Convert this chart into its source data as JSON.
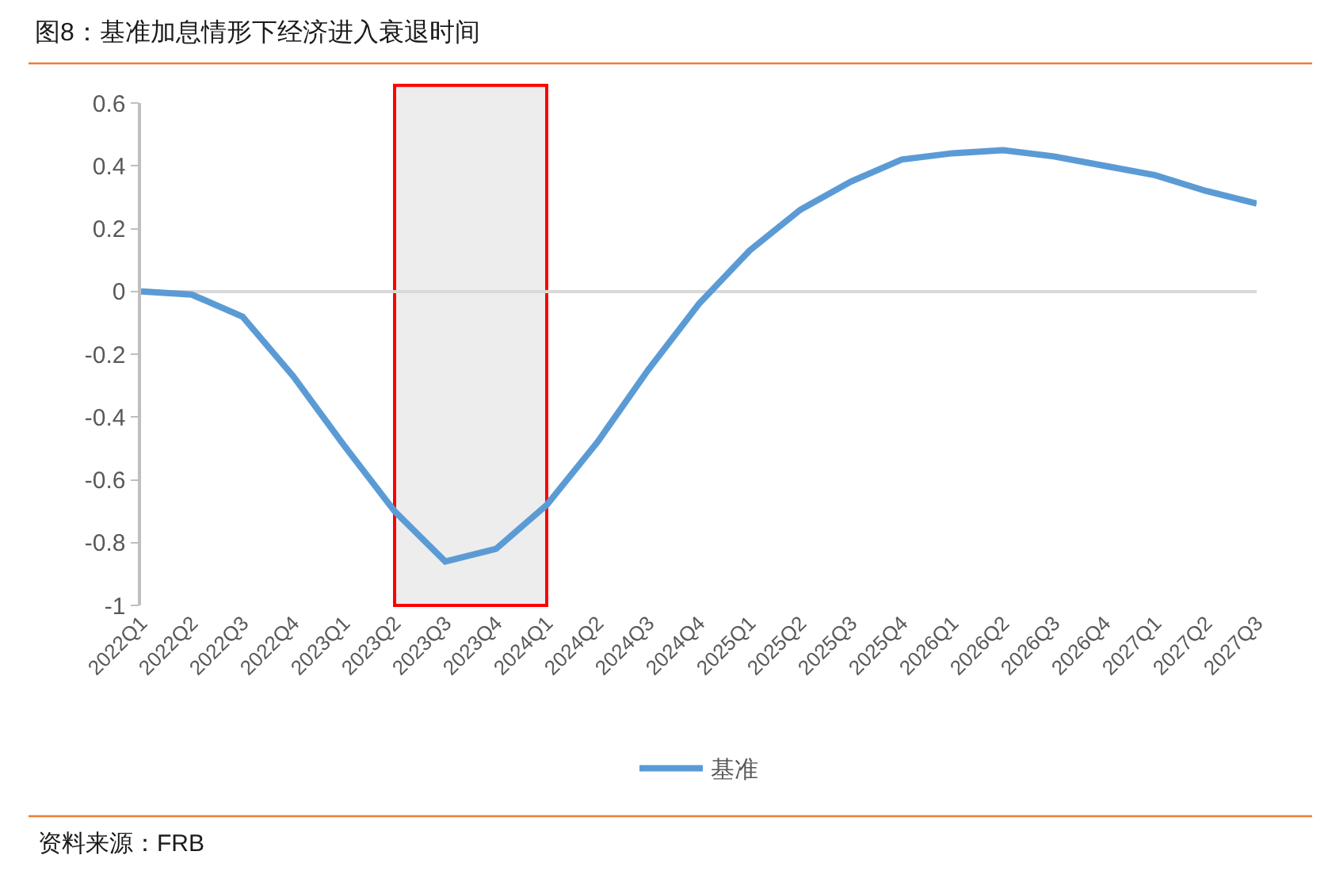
{
  "chart_data": {
    "type": "line",
    "title": "图8：基准加息情形下经济进入衰退时间",
    "categories": [
      "2022Q1",
      "2022Q2",
      "2022Q3",
      "2022Q4",
      "2023Q1",
      "2023Q2",
      "2023Q3",
      "2023Q4",
      "2024Q1",
      "2024Q2",
      "2024Q3",
      "2024Q4",
      "2025Q1",
      "2025Q2",
      "2025Q3",
      "2025Q4",
      "2026Q1",
      "2026Q2",
      "2026Q3",
      "2026Q4",
      "2027Q1",
      "2027Q2",
      "2027Q3"
    ],
    "series": [
      {
        "name": "基准",
        "color": "#5b9bd5",
        "values": [
          0,
          -0.01,
          -0.08,
          -0.27,
          -0.49,
          -0.7,
          -0.86,
          -0.82,
          -0.68,
          -0.48,
          -0.25,
          -0.04,
          0.13,
          0.26,
          0.35,
          0.42,
          0.44,
          0.45,
          0.43,
          0.4,
          0.37,
          0.32,
          0.28
        ]
      }
    ],
    "ylim": [
      -1,
      0.6
    ],
    "yticks": [
      -1,
      -0.8,
      -0.6,
      -0.4,
      -0.2,
      0,
      0.2,
      0.4,
      0.6
    ],
    "legend": "bottom",
    "line_style": "solid",
    "bands": [
      {
        "axis": "x",
        "from": "2023Q2",
        "to": "2024Q1",
        "color": "#ff0000"
      }
    ],
    "annotations": [
      "资料来源：FRB"
    ]
  }
}
